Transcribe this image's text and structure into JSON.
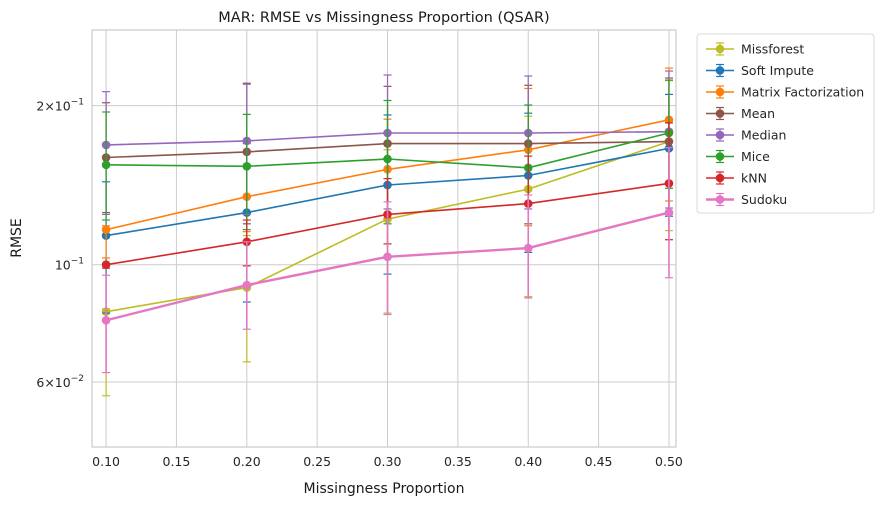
{
  "chart_data": {
    "type": "line",
    "title": "MAR: RMSE vs Missingness Proportion (QSAR)",
    "xlabel": "Missingness Proportion",
    "ylabel": "RMSE",
    "xlim": [
      0.09,
      0.505
    ],
    "ylim": [
      0.0452,
      0.278
    ],
    "yscale": "log",
    "grid": true,
    "legend_position": "outside-right",
    "x": [
      0.1,
      0.2,
      0.3,
      0.4,
      0.5
    ],
    "x_ticks": [
      0.1,
      0.15,
      0.2,
      0.25,
      0.3,
      0.35,
      0.4,
      0.45,
      0.5
    ],
    "x_tick_labels": [
      "0.10",
      "0.15",
      "0.20",
      "0.25",
      "0.30",
      "0.35",
      "0.40",
      "0.45",
      "0.50"
    ],
    "y_ticks": [
      {
        "value": 0.2,
        "base": "2×10",
        "exp": "−1"
      },
      {
        "value": 0.1,
        "base": "10",
        "exp": "−1"
      },
      {
        "value": 0.06,
        "base": "6×10",
        "exp": "−2"
      }
    ],
    "series": [
      {
        "name": "Missforest",
        "color": "#bcbd22",
        "values": [
          0.0815,
          0.0905,
          0.122,
          0.139,
          0.171
        ],
        "err_low": [
          0.0565,
          0.0655,
          0.081,
          0.087,
          0.116
        ],
        "err_high": [
          0.0825,
          0.1135,
          0.165,
          0.191,
          0.223
        ]
      },
      {
        "name": "Soft Impute",
        "color": "#1f77b4",
        "values": [
          0.1135,
          0.1255,
          0.1415,
          0.1475,
          0.166
        ],
        "err_low": [
          0.081,
          0.085,
          0.096,
          0.1055,
          0.1235
        ],
        "err_high": [
          0.1435,
          0.1695,
          0.192,
          0.1935,
          0.21
        ]
      },
      {
        "name": "Matrix Factorization",
        "color": "#ff7f0e",
        "values": [
          0.1165,
          0.1345,
          0.1515,
          0.165,
          0.188
        ],
        "err_low": [
          0.103,
          0.1155,
          0.1225,
          0.1185,
          0.132
        ],
        "err_high": [
          0.1185,
          0.1545,
          0.1885,
          0.2155,
          0.2355
        ]
      },
      {
        "name": "Mean",
        "color": "#8c564b",
        "values": [
          0.1595,
          0.1635,
          0.1695,
          0.1695,
          0.171
        ],
        "err_low": [
          0.1255,
          0.1195,
          0.1245,
          0.1195,
          0.126
        ],
        "err_high": [
          0.2025,
          0.2205,
          0.2175,
          0.2185,
          0.2255
        ]
      },
      {
        "name": "Median",
        "color": "#9467bd",
        "values": [
          0.1685,
          0.1715,
          0.1775,
          0.1775,
          0.1785
        ],
        "err_low": [
          0.1245,
          0.1245,
          0.1275,
          0.1275,
          0.128
        ],
        "err_high": [
          0.2125,
          0.2195,
          0.2285,
          0.2275,
          0.2325
        ]
      },
      {
        "name": "Mice",
        "color": "#2ca02c",
        "values": [
          0.1545,
          0.1535,
          0.1585,
          0.1525,
          0.1775
        ],
        "err_low": [
          0.1215,
          0.1165,
          0.1195,
          0.1075,
          0.1395
        ],
        "err_high": [
          0.1945,
          0.1925,
          0.2045,
          0.2005,
          0.2235
        ]
      },
      {
        "name": "kNN",
        "color": "#d62728",
        "values": [
          0.1,
          0.1105,
          0.1245,
          0.1305,
          0.1425
        ],
        "err_low": [
          0.0985,
          0.0995,
          0.1095,
          0.1075,
          0.1115
        ],
        "err_high": [
          0.1005,
          0.1215,
          0.1455,
          0.1605,
          0.1855
        ]
      },
      {
        "name": "Sudoku",
        "color": "#e377c2",
        "values": [
          0.0785,
          0.0915,
          0.1035,
          0.1075,
          0.1255
        ],
        "err_low": [
          0.0625,
          0.0755,
          0.0805,
          0.0865,
          0.0945
        ],
        "err_high": [
          0.0955,
          0.1105,
          0.1315,
          0.1355,
          0.1665
        ]
      }
    ]
  }
}
